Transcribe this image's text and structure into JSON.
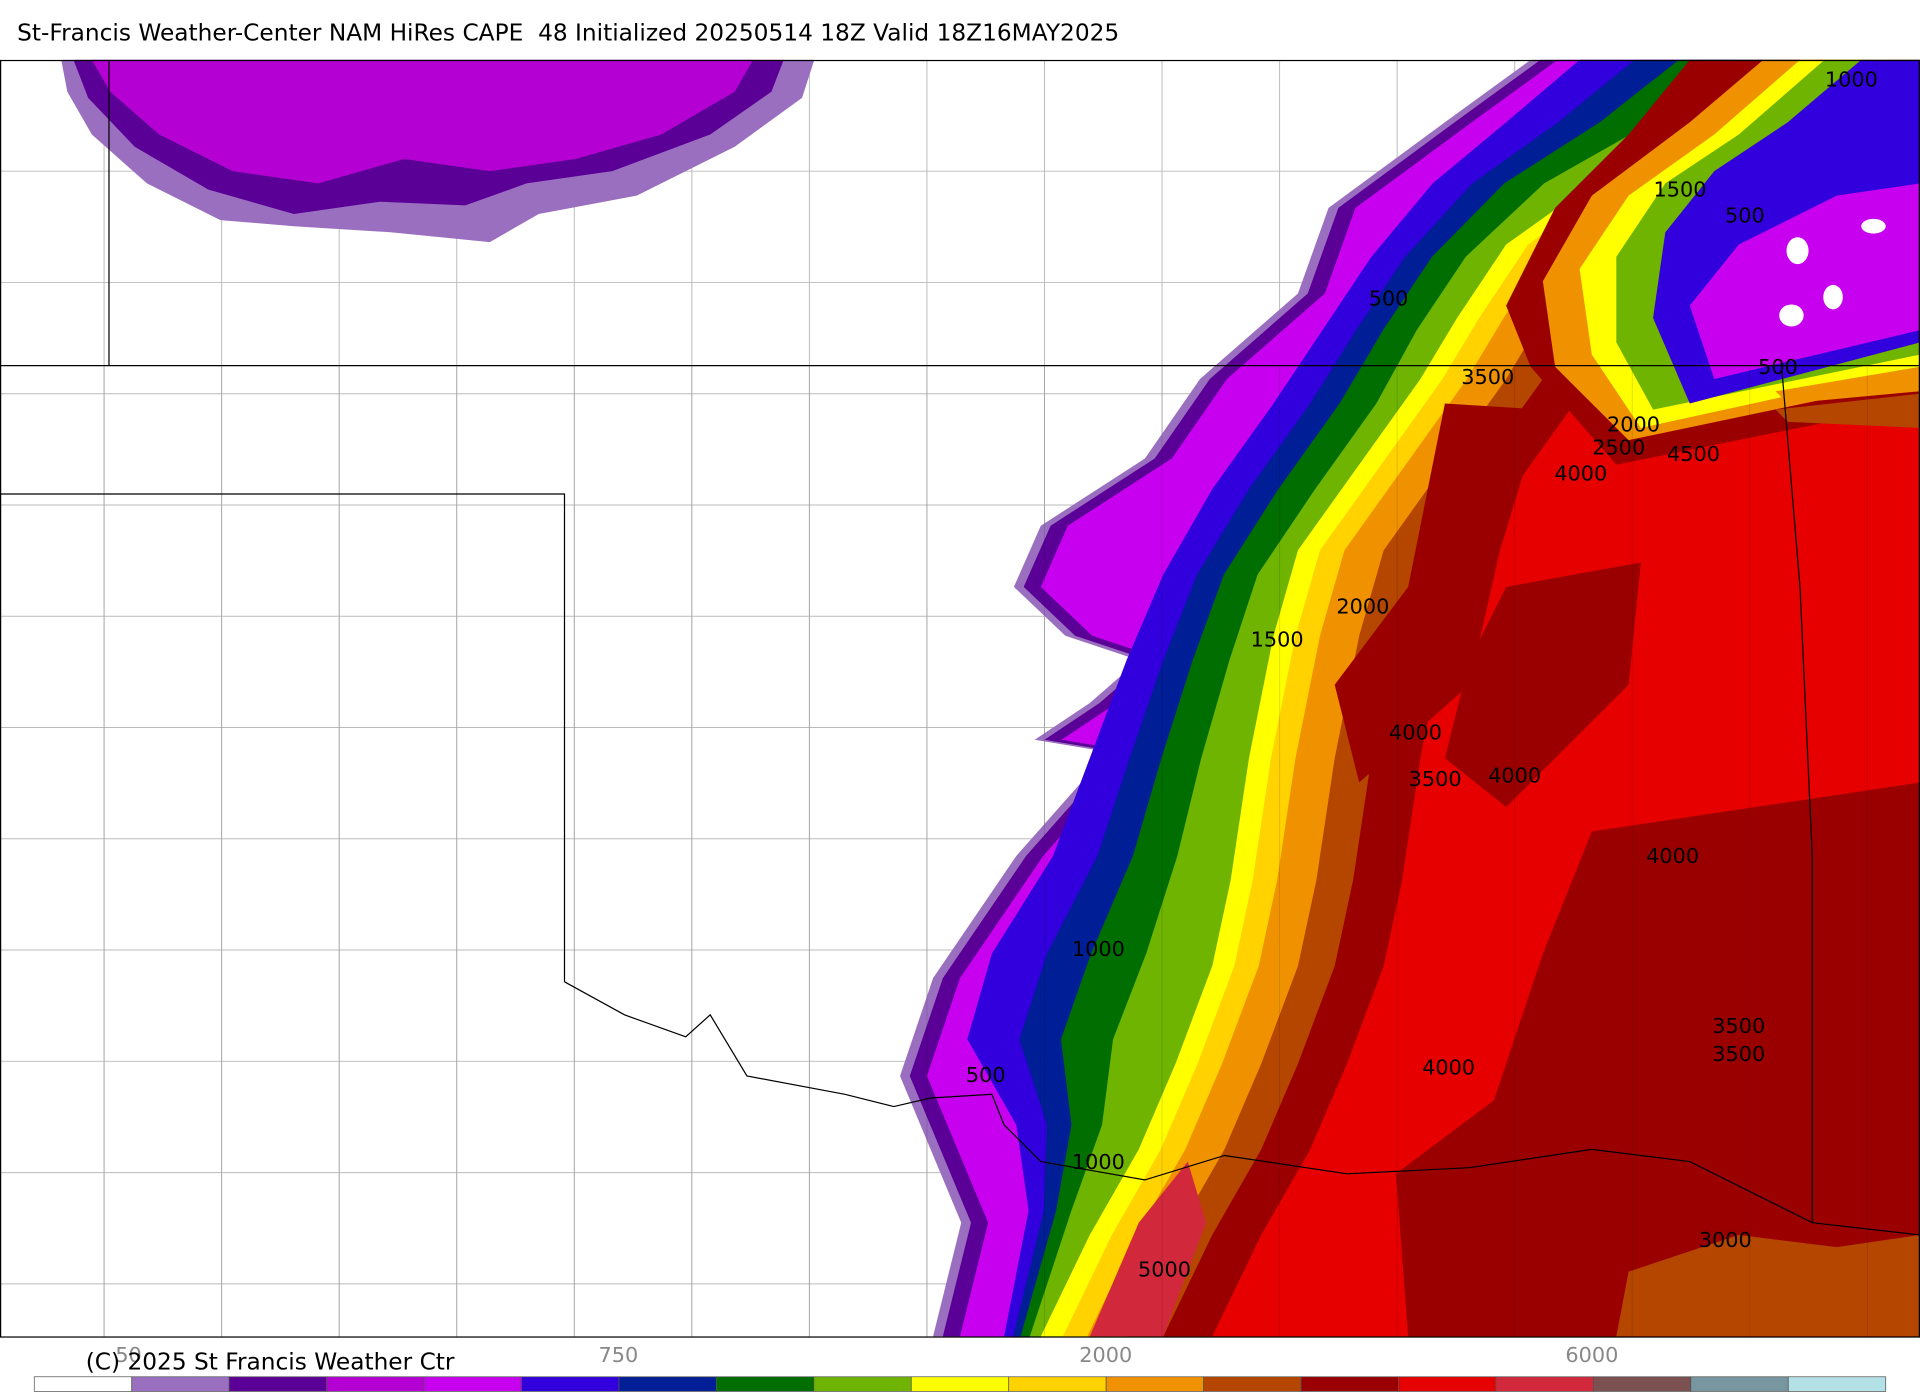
{
  "header": {
    "title": "St-Francis Weather-Center NAM HiRes CAPE  48 Initialized 20250514 18Z Valid 18Z16MAY2025"
  },
  "map": {
    "contour_labels": [
      1000,
      1500,
      500,
      500,
      500,
      3500,
      2000,
      2500,
      4000,
      4500,
      2000,
      1500,
      4000,
      3500,
      4000,
      4000,
      1000,
      3500,
      3500,
      500,
      4000,
      1000,
      3000,
      5000
    ]
  },
  "colorbar": {
    "colors": [
      "#ffffff",
      "#9b6fc0",
      "#5b0096",
      "#b400d2",
      "#c800f0",
      "#3200dc",
      "#001e96",
      "#006e00",
      "#6eb400",
      "#ffff00",
      "#ffd200",
      "#f09100",
      "#b44600",
      "#9b0000",
      "#e60000",
      "#d2283c",
      "#7a5050",
      "#7896a0",
      "#b4e1e6"
    ],
    "labels": [
      50,
      750,
      2000,
      6000
    ]
  },
  "footer": {
    "copyright": "(C) 2025 St Francis Weather Ctr"
  }
}
